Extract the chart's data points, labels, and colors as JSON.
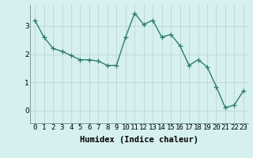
{
  "xlabel": "Humidex (Indice chaleur)",
  "x": [
    0,
    1,
    2,
    3,
    4,
    5,
    6,
    7,
    8,
    9,
    10,
    11,
    12,
    13,
    14,
    15,
    16,
    17,
    18,
    19,
    20,
    21,
    22,
    23
  ],
  "y": [
    3.2,
    2.6,
    2.2,
    2.1,
    1.95,
    1.8,
    1.8,
    1.75,
    1.6,
    1.6,
    2.6,
    3.45,
    3.05,
    3.2,
    2.6,
    2.7,
    2.3,
    1.6,
    1.8,
    1.55,
    0.85,
    0.1,
    0.2,
    0.7
  ],
  "line_color": "#2e7d6e",
  "marker": "+",
  "marker_size": 4,
  "bg_color": "#d6f0f0",
  "grid_color": "#c0d8d8",
  "ylim": [
    -0.45,
    3.75
  ],
  "yticks": [
    0,
    1,
    2,
    3
  ],
  "tick_fontsize": 6.5,
  "label_fontsize": 7.5
}
